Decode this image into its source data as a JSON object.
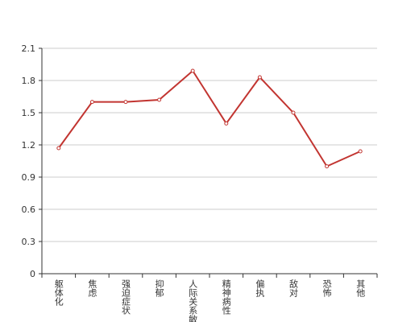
{
  "chart_data": {
    "type": "line",
    "categories": [
      "躯体化",
      "焦虑",
      "强迫症状",
      "抑郁",
      "人际关系敏感",
      "精神病性",
      "偏执",
      "敌对",
      "恐怖",
      "其他"
    ],
    "values": [
      1.17,
      1.6,
      1.6,
      1.62,
      1.89,
      1.4,
      1.83,
      1.5,
      1.0,
      1.14
    ],
    "color": "#c23531",
    "ylim": [
      0,
      2.1
    ],
    "yticks": [
      0,
      0.3,
      0.6,
      0.9,
      1.2,
      1.5,
      1.8,
      2.1
    ],
    "grid": true
  }
}
